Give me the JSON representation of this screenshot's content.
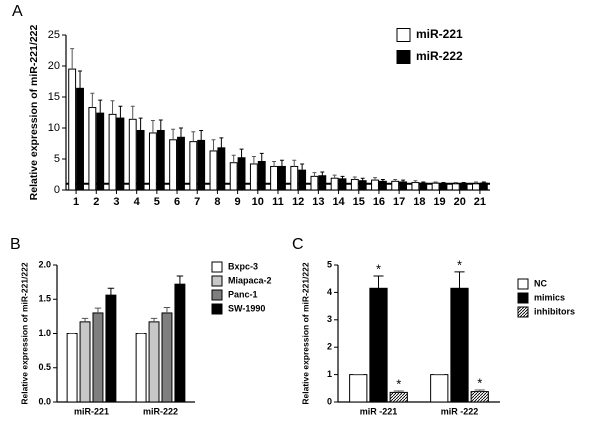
{
  "chart_data": [
    {
      "type": "bar",
      "panel": "A",
      "ylabel": "Relative expression of miR-221/222",
      "categories": [
        "1",
        "2",
        "3",
        "4",
        "5",
        "6",
        "7",
        "8",
        "9",
        "10",
        "11",
        "12",
        "13",
        "14",
        "15",
        "16",
        "17",
        "18",
        "19",
        "20",
        "21"
      ],
      "series": [
        {
          "name": "miR-221",
          "color": "#ffffff",
          "values": [
            19.5,
            13.3,
            12.2,
            11.4,
            9.2,
            8.1,
            7.8,
            6.3,
            4.4,
            4.2,
            3.8,
            3.8,
            2.2,
            1.9,
            1.7,
            1.6,
            1.4,
            1.2,
            1.1,
            1.0,
            1.0
          ],
          "errors": [
            3.3,
            2.3,
            2.2,
            2.1,
            2.0,
            1.7,
            1.6,
            1.8,
            1.2,
            1.2,
            0.8,
            1.0,
            0.6,
            0.5,
            0.4,
            0.4,
            0.3,
            0.3,
            0.2,
            0.2,
            0.3
          ]
        },
        {
          "name": "miR-222",
          "color": "#000000",
          "values": [
            16.4,
            12.4,
            11.6,
            9.6,
            9.6,
            8.5,
            8.0,
            6.8,
            5.2,
            4.6,
            3.8,
            3.2,
            2.3,
            1.8,
            1.5,
            1.4,
            1.3,
            1.1,
            1.0,
            1.0,
            1.1
          ],
          "errors": [
            2.8,
            2.1,
            1.9,
            2.0,
            1.7,
            1.5,
            1.6,
            1.6,
            1.4,
            1.3,
            1.0,
            1.0,
            0.6,
            0.4,
            0.4,
            0.3,
            0.3,
            0.2,
            0.2,
            0.2,
            0.2
          ]
        }
      ],
      "ylim": [
        0,
        25
      ],
      "yticks": [
        0,
        5,
        10,
        15,
        20,
        25
      ],
      "reference_line": 1
    },
    {
      "type": "bar",
      "panel": "B",
      "ylabel": "Relative expression of miR-221/222",
      "categories": [
        "miR-221",
        "miR-222"
      ],
      "series": [
        {
          "name": "Bxpc-3",
          "color": "#ffffff",
          "values": [
            1.0,
            1.0
          ],
          "errors": [
            0,
            0
          ]
        },
        {
          "name": "Miapaca-2",
          "color": "#c8c8c8",
          "values": [
            1.17,
            1.17
          ],
          "errors": [
            0.05,
            0.05
          ]
        },
        {
          "name": "Panc-1",
          "color": "#7f7f7f",
          "values": [
            1.3,
            1.3
          ],
          "errors": [
            0.07,
            0.08
          ]
        },
        {
          "name": "SW-1990",
          "color": "#000000",
          "values": [
            1.56,
            1.72
          ],
          "errors": [
            0.1,
            0.12
          ]
        }
      ],
      "ylim": [
        0,
        2
      ],
      "yticks": [
        {
          "value": 0,
          "label": "0.0"
        },
        {
          "value": 0.5,
          "label": "0.5"
        },
        {
          "value": 1,
          "label": "1.0"
        },
        {
          "value": 1.5,
          "label": "1.5"
        },
        {
          "value": 2,
          "label": "2.0"
        }
      ]
    },
    {
      "type": "bar",
      "panel": "C",
      "ylabel": "Relative expression of miR-221/222",
      "categories": [
        "miR -221",
        "miR -222"
      ],
      "series": [
        {
          "name": "NC",
          "color": "#ffffff",
          "values": [
            1,
            1
          ],
          "errors": [
            0,
            0
          ]
        },
        {
          "name": "mimics",
          "color": "#000000",
          "values": [
            4.15,
            4.15
          ],
          "errors": [
            0.45,
            0.6
          ],
          "significance": [
            "*",
            "*"
          ]
        },
        {
          "name": "inhibitors",
          "color": "#ffffff",
          "hatch": true,
          "values": [
            0.35,
            0.38
          ],
          "errors": [
            0.05,
            0.06
          ],
          "significance": [
            "*",
            "*"
          ]
        }
      ],
      "ylim": [
        0,
        5
      ],
      "yticks": [
        0,
        1,
        2,
        3,
        4,
        5
      ]
    }
  ]
}
